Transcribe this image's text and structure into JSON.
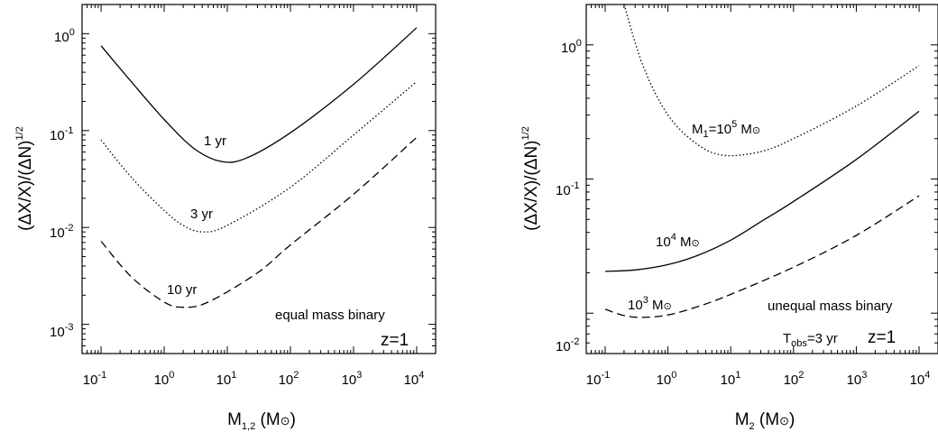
{
  "chart_data": [
    {
      "type": "line",
      "xscale": "log",
      "yscale": "log",
      "xlim": [
        0.05,
        20000
      ],
      "ylim": [
        0.0005,
        2
      ],
      "xticks": [
        {
          "base": "10",
          "exp": "-1"
        },
        {
          "base": "10",
          "exp": "0"
        },
        {
          "base": "10",
          "exp": "1"
        },
        {
          "base": "10",
          "exp": "2"
        },
        {
          "base": "10",
          "exp": "3"
        },
        {
          "base": "10",
          "exp": "4"
        }
      ],
      "yticks": [
        {
          "base": "10",
          "exp": "-3"
        },
        {
          "base": "10",
          "exp": "-2"
        },
        {
          "base": "10",
          "exp": "-1"
        },
        {
          "base": "10",
          "exp": "0"
        }
      ],
      "xlabel": {
        "main": "M",
        "sub": "1,2",
        "unit": " (M",
        "unit_end": ")"
      },
      "ylabel": {
        "main": "(ΔX/X)/(ΔN)",
        "sup": "1/2"
      },
      "annotations": [
        {
          "text": "equal mass binary",
          "style": "normal"
        },
        {
          "text": "z=1",
          "style": "big"
        }
      ],
      "series": [
        {
          "name": "1 yr",
          "dash": "solid",
          "x": [
            0.1,
            0.3,
            1,
            3,
            8,
            20,
            100,
            1000,
            10000
          ],
          "y": [
            0.75,
            0.32,
            0.13,
            0.065,
            0.048,
            0.052,
            0.095,
            0.3,
            1.15
          ]
        },
        {
          "name": "3 yr",
          "dash": "dotted",
          "x": [
            0.1,
            0.3,
            1,
            2,
            4,
            10,
            100,
            1000,
            10000
          ],
          "y": [
            0.08,
            0.033,
            0.015,
            0.0105,
            0.009,
            0.0105,
            0.026,
            0.09,
            0.32
          ]
        },
        {
          "name": "10 yr",
          "dash": "dashed",
          "x": [
            0.1,
            0.3,
            1,
            2,
            5,
            30,
            100,
            1000,
            10000
          ],
          "y": [
            0.0072,
            0.0031,
            0.0017,
            0.0015,
            0.0017,
            0.0034,
            0.0066,
            0.022,
            0.085
          ]
        }
      ]
    },
    {
      "type": "line",
      "xscale": "log",
      "yscale": "log",
      "xlim": [
        0.05,
        20000
      ],
      "ylim": [
        0.005,
        2
      ],
      "xticks": [
        {
          "base": "10",
          "exp": "-1"
        },
        {
          "base": "10",
          "exp": "0"
        },
        {
          "base": "10",
          "exp": "1"
        },
        {
          "base": "10",
          "exp": "2"
        },
        {
          "base": "10",
          "exp": "3"
        },
        {
          "base": "10",
          "exp": "4"
        }
      ],
      "yticks": [
        {
          "base": "10",
          "exp": "-2"
        },
        {
          "base": "10",
          "exp": "-1"
        },
        {
          "base": "10",
          "exp": "0"
        }
      ],
      "xlabel": {
        "main": "M",
        "sub": "2",
        "unit": " (M",
        "unit_end": ")"
      },
      "ylabel": {
        "main": "(ΔX/X)/(ΔN)",
        "sup": "1/2"
      },
      "annotations": [
        {
          "text": "unequal mass binary",
          "style": "normal"
        },
        {
          "text": "T",
          "sub": "obs",
          "tail": "=3 yr",
          "style": "normal"
        },
        {
          "text": "z=1",
          "style": "big"
        }
      ],
      "series": [
        {
          "name": "M₁=10⁵ M⊙",
          "label_parts": {
            "pre": "M",
            "sub": "1",
            "mid": "=10",
            "sup": "5",
            "post": " M"
          },
          "dash": "dotted",
          "x": [
            0.2,
            0.4,
            1,
            3,
            8,
            30,
            100,
            1000,
            10000
          ],
          "y": [
            2.0,
            0.7,
            0.3,
            0.18,
            0.15,
            0.16,
            0.2,
            0.35,
            0.7
          ]
        },
        {
          "name": "10⁴ M⊙",
          "label_parts": {
            "pre": "",
            "sub": "",
            "mid": "10",
            "sup": "4",
            "post": " M"
          },
          "dash": "solid",
          "x": [
            0.1,
            0.3,
            1,
            3,
            10,
            30,
            100,
            1000,
            10000
          ],
          "y": [
            0.0205,
            0.021,
            0.023,
            0.027,
            0.035,
            0.048,
            0.068,
            0.14,
            0.32
          ]
        },
        {
          "name": "10³ M⊙",
          "label_parts": {
            "pre": "",
            "sub": "",
            "mid": "10",
            "sup": "3",
            "post": " M"
          },
          "dash": "dashed",
          "x": [
            0.1,
            0.2,
            0.4,
            1,
            3,
            10,
            100,
            1000,
            10000
          ],
          "y": [
            0.0107,
            0.0096,
            0.0093,
            0.0097,
            0.0112,
            0.0138,
            0.022,
            0.038,
            0.075
          ]
        }
      ]
    }
  ]
}
